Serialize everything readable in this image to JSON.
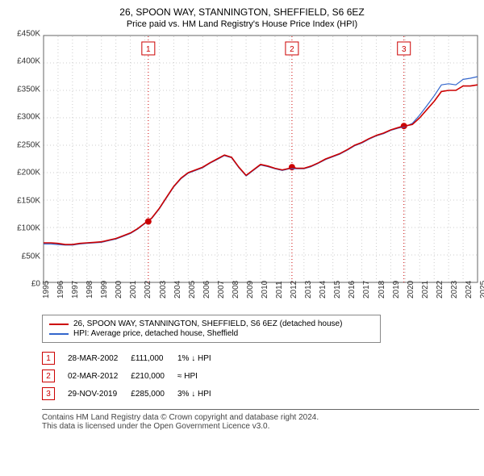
{
  "titles": {
    "main": "26, SPOON WAY, STANNINGTON, SHEFFIELD, S6 6EZ",
    "sub": "Price paid vs. HM Land Registry's House Price Index (HPI)"
  },
  "chart": {
    "type": "line",
    "background_color": "#ffffff",
    "plot_border_color": "#666666",
    "grid_color": "#cccccc",
    "dotted_grid": true,
    "y": {
      "min": 0,
      "max": 450000,
      "step": 50000,
      "labels": [
        "£0",
        "£50K",
        "£100K",
        "£150K",
        "£200K",
        "£250K",
        "£300K",
        "£350K",
        "£400K",
        "£450K"
      ]
    },
    "x": {
      "min": 1995,
      "max": 2025,
      "step": 1,
      "labels": [
        "1995",
        "1996",
        "1997",
        "1998",
        "1999",
        "2000",
        "2001",
        "2002",
        "2003",
        "2004",
        "2005",
        "2006",
        "2007",
        "2008",
        "2009",
        "2010",
        "2011",
        "2012",
        "2013",
        "2014",
        "2015",
        "2016",
        "2017",
        "2018",
        "2019",
        "2020",
        "2021",
        "2022",
        "2023",
        "2024",
        "2025"
      ]
    },
    "series": [
      {
        "name": "26, SPOON WAY, STANNINGTON, SHEFFIELD, S6 6EZ (detached house)",
        "color": "#cc0000",
        "width": 1.6,
        "points": [
          [
            1995.0,
            72000
          ],
          [
            1995.5,
            72000
          ],
          [
            1996.0,
            71000
          ],
          [
            1996.5,
            69000
          ],
          [
            1997.0,
            69000
          ],
          [
            1997.5,
            71000
          ],
          [
            1998.0,
            72000
          ],
          [
            1998.5,
            73000
          ],
          [
            1999.0,
            74000
          ],
          [
            1999.5,
            77000
          ],
          [
            2000.0,
            80000
          ],
          [
            2000.5,
            85000
          ],
          [
            2001.0,
            90000
          ],
          [
            2001.5,
            98000
          ],
          [
            2002.0,
            108000
          ],
          [
            2002.2,
            111000
          ],
          [
            2002.5,
            118000
          ],
          [
            2003.0,
            135000
          ],
          [
            2003.5,
            155000
          ],
          [
            2004.0,
            175000
          ],
          [
            2004.5,
            190000
          ],
          [
            2005.0,
            200000
          ],
          [
            2005.5,
            205000
          ],
          [
            2006.0,
            210000
          ],
          [
            2006.5,
            218000
          ],
          [
            2007.0,
            225000
          ],
          [
            2007.5,
            232000
          ],
          [
            2008.0,
            228000
          ],
          [
            2008.5,
            210000
          ],
          [
            2009.0,
            195000
          ],
          [
            2009.5,
            205000
          ],
          [
            2010.0,
            215000
          ],
          [
            2010.5,
            212000
          ],
          [
            2011.0,
            208000
          ],
          [
            2011.5,
            205000
          ],
          [
            2012.0,
            208000
          ],
          [
            2012.2,
            210000
          ],
          [
            2012.5,
            208000
          ],
          [
            2013.0,
            208000
          ],
          [
            2013.5,
            212000
          ],
          [
            2014.0,
            218000
          ],
          [
            2014.5,
            225000
          ],
          [
            2015.0,
            230000
          ],
          [
            2015.5,
            235000
          ],
          [
            2016.0,
            242000
          ],
          [
            2016.5,
            250000
          ],
          [
            2017.0,
            255000
          ],
          [
            2017.5,
            262000
          ],
          [
            2018.0,
            268000
          ],
          [
            2018.5,
            272000
          ],
          [
            2019.0,
            278000
          ],
          [
            2019.5,
            282000
          ],
          [
            2019.9,
            285000
          ],
          [
            2020.0,
            285000
          ],
          [
            2020.5,
            288000
          ],
          [
            2021.0,
            300000
          ],
          [
            2021.5,
            315000
          ],
          [
            2022.0,
            330000
          ],
          [
            2022.5,
            348000
          ],
          [
            2023.0,
            350000
          ],
          [
            2023.5,
            350000
          ],
          [
            2024.0,
            358000
          ],
          [
            2024.5,
            358000
          ],
          [
            2025.0,
            360000
          ]
        ]
      },
      {
        "name": "HPI: Average price, detached house, Sheffield",
        "color": "#3366cc",
        "width": 1.2,
        "points": [
          [
            1995.0,
            70000
          ],
          [
            1995.5,
            70000
          ],
          [
            1996.0,
            69000
          ],
          [
            1996.5,
            68000
          ],
          [
            1997.0,
            68000
          ],
          [
            1997.5,
            70000
          ],
          [
            1998.0,
            71000
          ],
          [
            1998.5,
            72000
          ],
          [
            1999.0,
            73000
          ],
          [
            1999.5,
            76000
          ],
          [
            2000.0,
            79000
          ],
          [
            2000.5,
            84000
          ],
          [
            2001.0,
            89000
          ],
          [
            2001.5,
            97000
          ],
          [
            2002.0,
            107000
          ],
          [
            2002.5,
            117000
          ],
          [
            2003.0,
            134000
          ],
          [
            2003.5,
            154000
          ],
          [
            2004.0,
            174000
          ],
          [
            2004.5,
            189000
          ],
          [
            2005.0,
            199000
          ],
          [
            2005.5,
            204000
          ],
          [
            2006.0,
            209000
          ],
          [
            2006.5,
            217000
          ],
          [
            2007.0,
            224000
          ],
          [
            2007.5,
            231000
          ],
          [
            2008.0,
            227000
          ],
          [
            2008.5,
            209000
          ],
          [
            2009.0,
            194000
          ],
          [
            2009.5,
            204000
          ],
          [
            2010.0,
            214000
          ],
          [
            2010.5,
            211000
          ],
          [
            2011.0,
            207000
          ],
          [
            2011.5,
            204000
          ],
          [
            2012.0,
            207000
          ],
          [
            2012.5,
            207000
          ],
          [
            2013.0,
            207000
          ],
          [
            2013.5,
            211000
          ],
          [
            2014.0,
            217000
          ],
          [
            2014.5,
            224000
          ],
          [
            2015.0,
            229000
          ],
          [
            2015.5,
            234000
          ],
          [
            2016.0,
            241000
          ],
          [
            2016.5,
            249000
          ],
          [
            2017.0,
            254000
          ],
          [
            2017.5,
            261000
          ],
          [
            2018.0,
            267000
          ],
          [
            2018.5,
            271000
          ],
          [
            2019.0,
            277000
          ],
          [
            2019.5,
            281000
          ],
          [
            2020.0,
            284000
          ],
          [
            2020.5,
            290000
          ],
          [
            2021.0,
            305000
          ],
          [
            2021.5,
            322000
          ],
          [
            2022.0,
            340000
          ],
          [
            2022.5,
            360000
          ],
          [
            2023.0,
            362000
          ],
          [
            2023.5,
            360000
          ],
          [
            2024.0,
            370000
          ],
          [
            2024.5,
            372000
          ],
          [
            2025.0,
            375000
          ]
        ]
      }
    ],
    "event_lines": {
      "color": "#cc0000",
      "dotted": true,
      "marker_border": "#cc0000",
      "marker_bg": "#ffffff",
      "events": [
        {
          "n": "1",
          "x": 2002.24,
          "date": "28-MAR-2002",
          "price": "£111,000",
          "delta": "1% ↓ HPI",
          "dot_y": 111000
        },
        {
          "n": "2",
          "x": 2012.17,
          "date": "02-MAR-2012",
          "price": "£210,000",
          "delta": "≈ HPI",
          "dot_y": 210000
        },
        {
          "n": "3",
          "x": 2019.91,
          "date": "29-NOV-2019",
          "price": "£285,000",
          "delta": "3% ↓ HPI",
          "dot_y": 285000
        }
      ]
    }
  },
  "legend": {
    "rows": [
      {
        "color": "#cc0000",
        "label": "26, SPOON WAY, STANNINGTON, SHEFFIELD, S6 6EZ (detached house)"
      },
      {
        "color": "#3366cc",
        "label": "HPI: Average price, detached house, Sheffield"
      }
    ]
  },
  "footer": {
    "line1": "Contains HM Land Registry data © Crown copyright and database right 2024.",
    "line2": "This data is licensed under the Open Government Licence v3.0."
  }
}
